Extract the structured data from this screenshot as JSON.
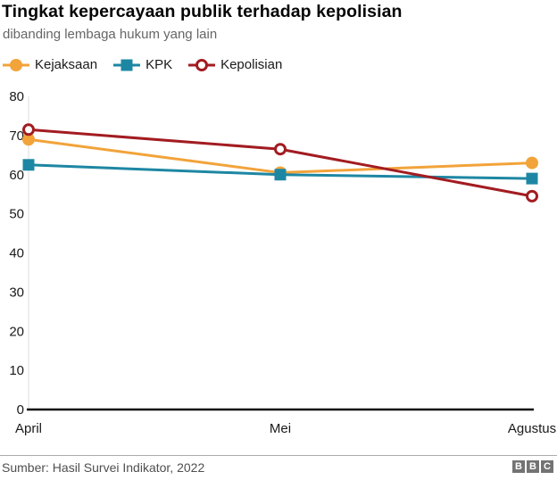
{
  "header": {
    "title": "Tingkat kepercayaan publik terhadap kepolisian",
    "subtitle": "dibanding lembaga hukum yang lain"
  },
  "chart_data": {
    "type": "line",
    "categories": [
      "April",
      "Mei",
      "Agustus"
    ],
    "series": [
      {
        "name": "Kejaksaan",
        "color": "#f2a33a",
        "marker": "circle",
        "values": [
          69,
          60.5,
          63
        ]
      },
      {
        "name": "KPK",
        "color": "#1d87a3",
        "marker": "square",
        "values": [
          62.5,
          60,
          59
        ]
      },
      {
        "name": "Kepolisian",
        "color": "#a21c21",
        "marker": "open-circle",
        "values": [
          71.5,
          66.5,
          54.5
        ]
      }
    ],
    "ylim": [
      0,
      80
    ],
    "ytick_step": 10,
    "yticks": [
      0,
      10,
      20,
      30,
      40,
      50,
      60,
      70,
      80
    ],
    "grid": "none",
    "legend_position": "top-left",
    "axis_colors": {
      "baseline": "#0d0d0d",
      "y_axis_line": "#dcdcdc"
    }
  },
  "footer": {
    "source": "Sumber: Hasil Survei Indikator, 2022",
    "logo_letters": [
      "B",
      "B",
      "C"
    ]
  }
}
